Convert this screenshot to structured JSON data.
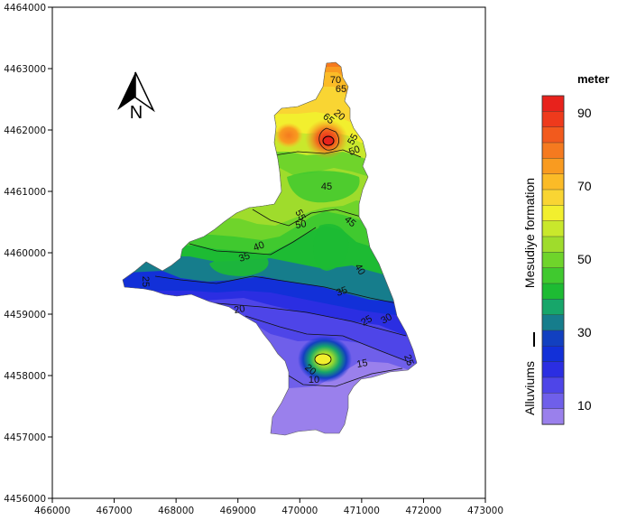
{
  "x_ticks": [
    "466000",
    "467000",
    "468000",
    "469000",
    "470000",
    "471000",
    "472000",
    "473000"
  ],
  "y_ticks": [
    "4464000",
    "4463000",
    "4462000",
    "4461000",
    "4460000",
    "4459000",
    "4458000",
    "4457000",
    "4456000"
  ],
  "north_arrow": {
    "label": "N",
    "icon": "north-arrow-icon"
  },
  "legend": {
    "title": "meter",
    "ticks": [
      "90",
      "70",
      "50",
      "30",
      "10"
    ],
    "formation_label": "Mesudiye formation",
    "alluvium_label": "Alluviums",
    "colors": [
      "#e8221c",
      "#ee3a1c",
      "#f25a1d",
      "#f57a1f",
      "#f99b20",
      "#fbbb27",
      "#f9d533",
      "#f2ef2e",
      "#c9e82c",
      "#9fdc2c",
      "#6fd42b",
      "#40c92f",
      "#1dbb33",
      "#17a66a",
      "#167d8c",
      "#1240c0",
      "#1230d8",
      "#2b2ee2",
      "#4e45e8",
      "#6f5fea",
      "#9a80ec"
    ]
  },
  "contour_labels": [
    "70",
    "65",
    "65",
    "20",
    "55",
    "50",
    "45",
    "55",
    "50",
    "45",
    "40",
    "35",
    "40",
    "35",
    "25",
    "30",
    "25",
    "20",
    "15",
    "10",
    "20",
    "25"
  ]
}
